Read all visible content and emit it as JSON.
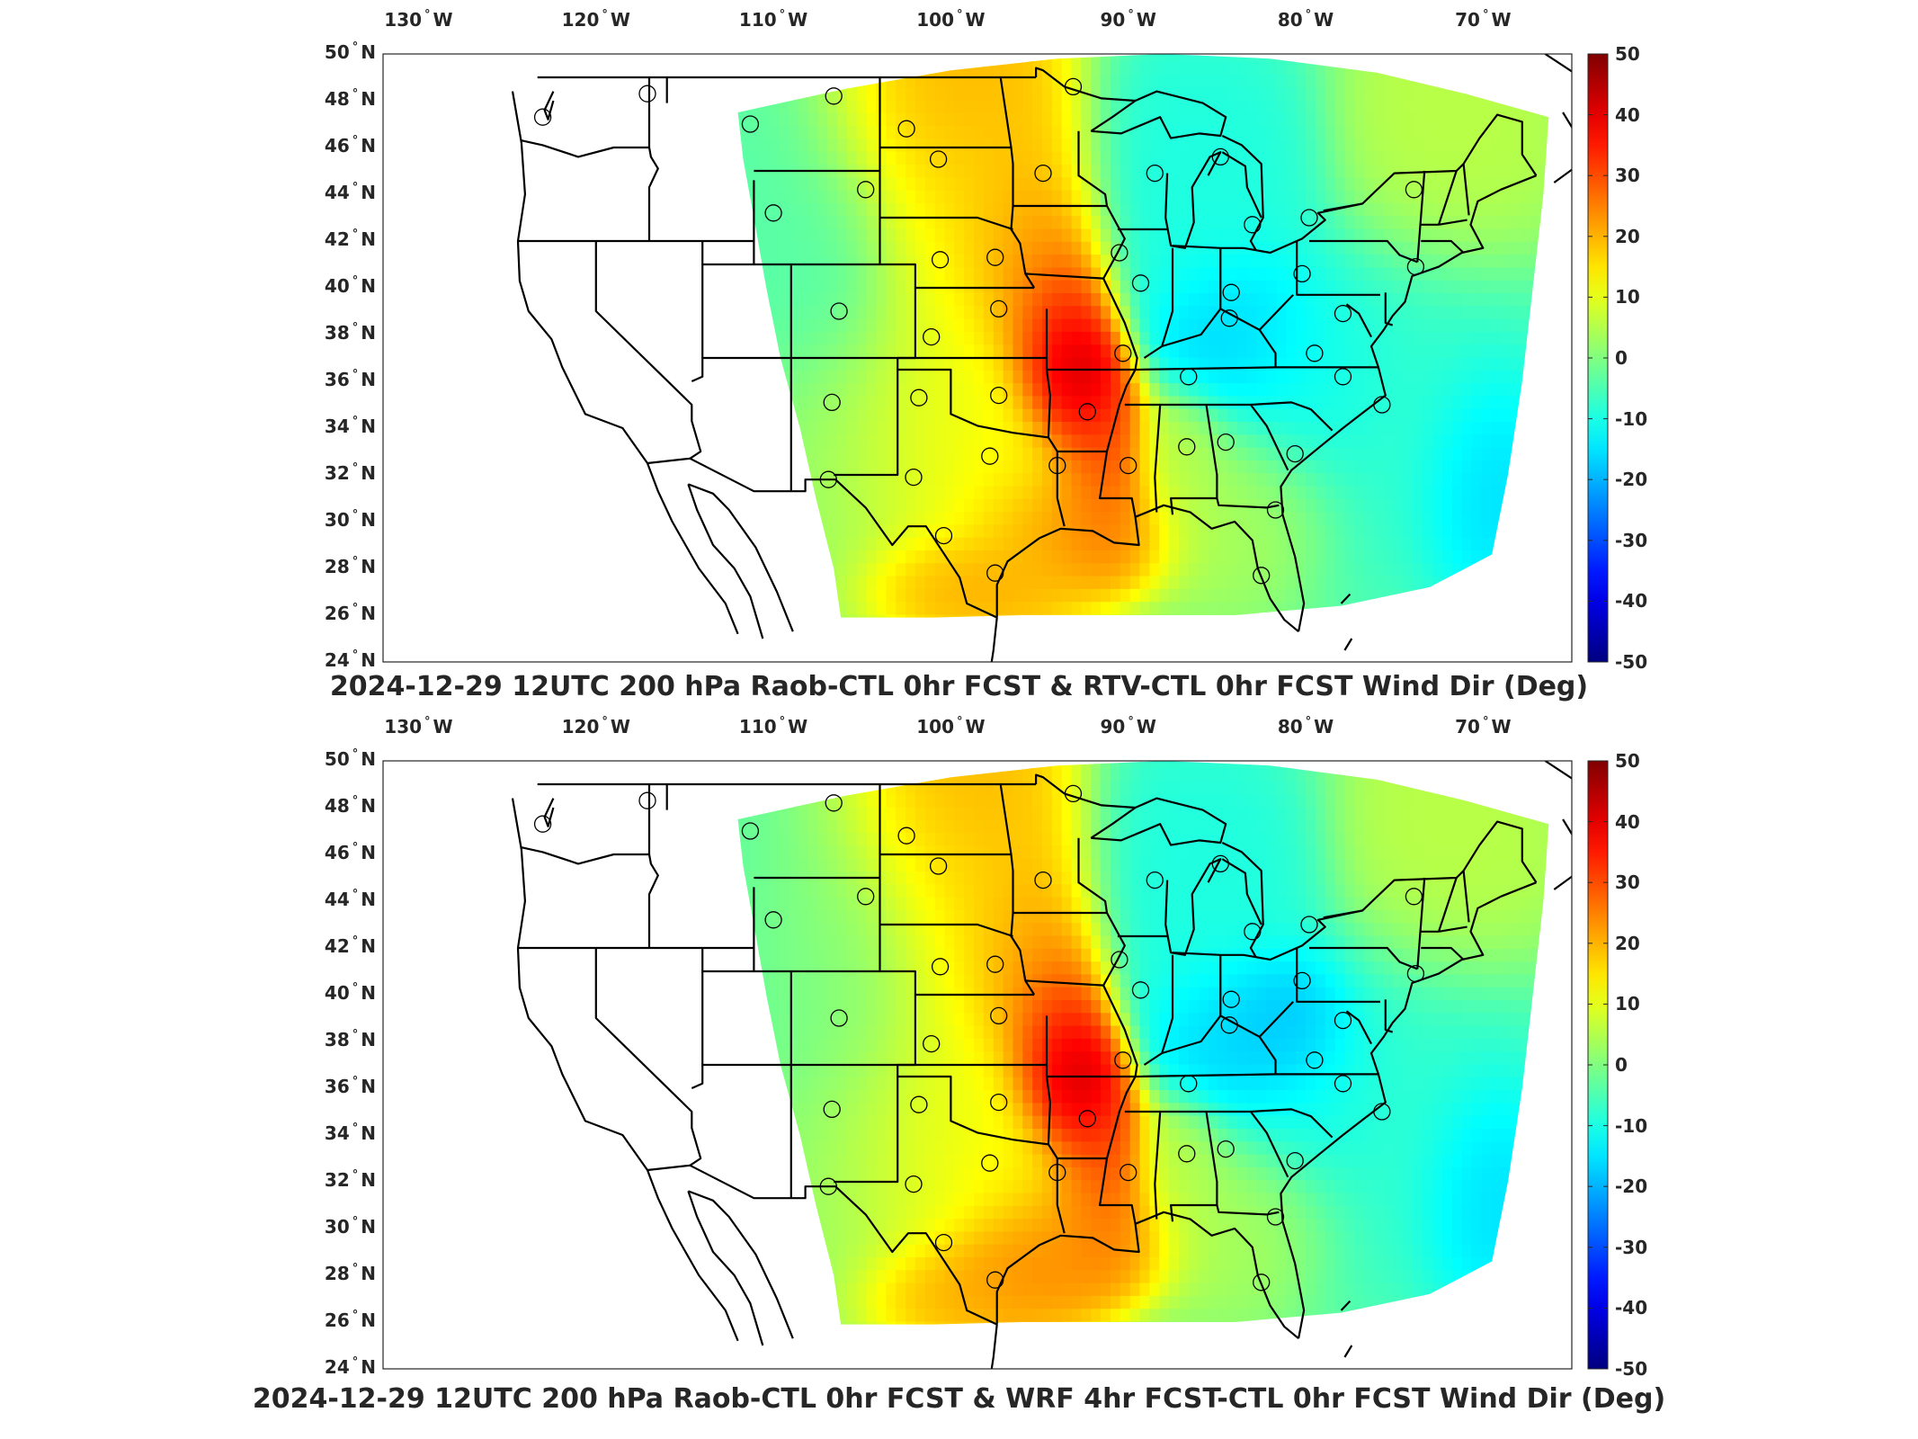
{
  "panels": [
    {
      "title": "2024-12-29 12UTC 200 hPa Raob-CTL 0hr FCST & RTV-CTL 0hr FCST Wind Dir (Deg)",
      "variant": "rtv"
    },
    {
      "title": "2024-12-29 12UTC 200 hPa Raob-CTL 0hr FCST & WRF 4hr FCST-CTL 0hr FCST Wind Dir (Deg)",
      "variant": "wrf"
    }
  ],
  "lon_labels": [
    {
      "value": "130",
      "hemi": "W"
    },
    {
      "value": "120",
      "hemi": "W"
    },
    {
      "value": "110",
      "hemi": "W"
    },
    {
      "value": "100",
      "hemi": "W"
    },
    {
      "value": "90",
      "hemi": "W"
    },
    {
      "value": "80",
      "hemi": "W"
    },
    {
      "value": "70",
      "hemi": "W"
    }
  ],
  "lat_labels": [
    {
      "value": "50",
      "hemi": "N"
    },
    {
      "value": "48",
      "hemi": "N"
    },
    {
      "value": "46",
      "hemi": "N"
    },
    {
      "value": "44",
      "hemi": "N"
    },
    {
      "value": "42",
      "hemi": "N"
    },
    {
      "value": "40",
      "hemi": "N"
    },
    {
      "value": "38",
      "hemi": "N"
    },
    {
      "value": "36",
      "hemi": "N"
    },
    {
      "value": "34",
      "hemi": "N"
    },
    {
      "value": "32",
      "hemi": "N"
    },
    {
      "value": "30",
      "hemi": "N"
    },
    {
      "value": "28",
      "hemi": "N"
    },
    {
      "value": "26",
      "hemi": "N"
    },
    {
      "value": "24",
      "hemi": "N"
    }
  ],
  "colorbar": {
    "min": -50,
    "max": 50,
    "ticks": [
      "50",
      "40",
      "30",
      "20",
      "10",
      "0",
      "-10",
      "-20",
      "-30",
      "-40",
      "-50"
    ],
    "colormap": "jet"
  },
  "map": {
    "lon_range": [
      -132,
      -65
    ],
    "lat_range": [
      24,
      50
    ],
    "raob_stations": [
      [
        -123.0,
        47.3
      ],
      [
        -117.1,
        48.3
      ],
      [
        -111.3,
        47.0
      ],
      [
        -106.6,
        48.2
      ],
      [
        -102.5,
        46.8
      ],
      [
        -100.7,
        45.5
      ],
      [
        -93.1,
        48.6
      ],
      [
        -94.8,
        44.9
      ],
      [
        -88.5,
        44.9
      ],
      [
        -84.8,
        45.6
      ],
      [
        -83.0,
        42.7
      ],
      [
        -79.8,
        43.0
      ],
      [
        -73.9,
        44.2
      ],
      [
        -110.0,
        43.2
      ],
      [
        -104.8,
        44.2
      ],
      [
        -97.5,
        41.3
      ],
      [
        -100.6,
        41.2
      ],
      [
        -90.5,
        41.5
      ],
      [
        -89.3,
        40.2
      ],
      [
        -84.2,
        39.8
      ],
      [
        -80.2,
        40.6
      ],
      [
        -77.9,
        38.9
      ],
      [
        -73.8,
        40.9
      ],
      [
        -106.3,
        39.0
      ],
      [
        -101.1,
        37.9
      ],
      [
        -97.3,
        39.1
      ],
      [
        -90.3,
        37.2
      ],
      [
        -86.6,
        36.2
      ],
      [
        -84.3,
        38.7
      ],
      [
        -79.5,
        37.2
      ],
      [
        -77.9,
        36.2
      ],
      [
        -106.7,
        35.1
      ],
      [
        -101.8,
        35.3
      ],
      [
        -97.3,
        35.4
      ],
      [
        -92.3,
        34.7
      ],
      [
        -90.0,
        32.4
      ],
      [
        -86.7,
        33.2
      ],
      [
        -84.5,
        33.4
      ],
      [
        -80.6,
        32.9
      ],
      [
        -75.7,
        35.0
      ],
      [
        -106.9,
        31.8
      ],
      [
        -102.1,
        31.9
      ],
      [
        -97.8,
        32.8
      ],
      [
        -94.0,
        32.4
      ],
      [
        -81.7,
        30.5
      ],
      [
        -100.4,
        29.4
      ],
      [
        -97.5,
        27.8
      ],
      [
        -82.5,
        27.7
      ]
    ]
  }
}
